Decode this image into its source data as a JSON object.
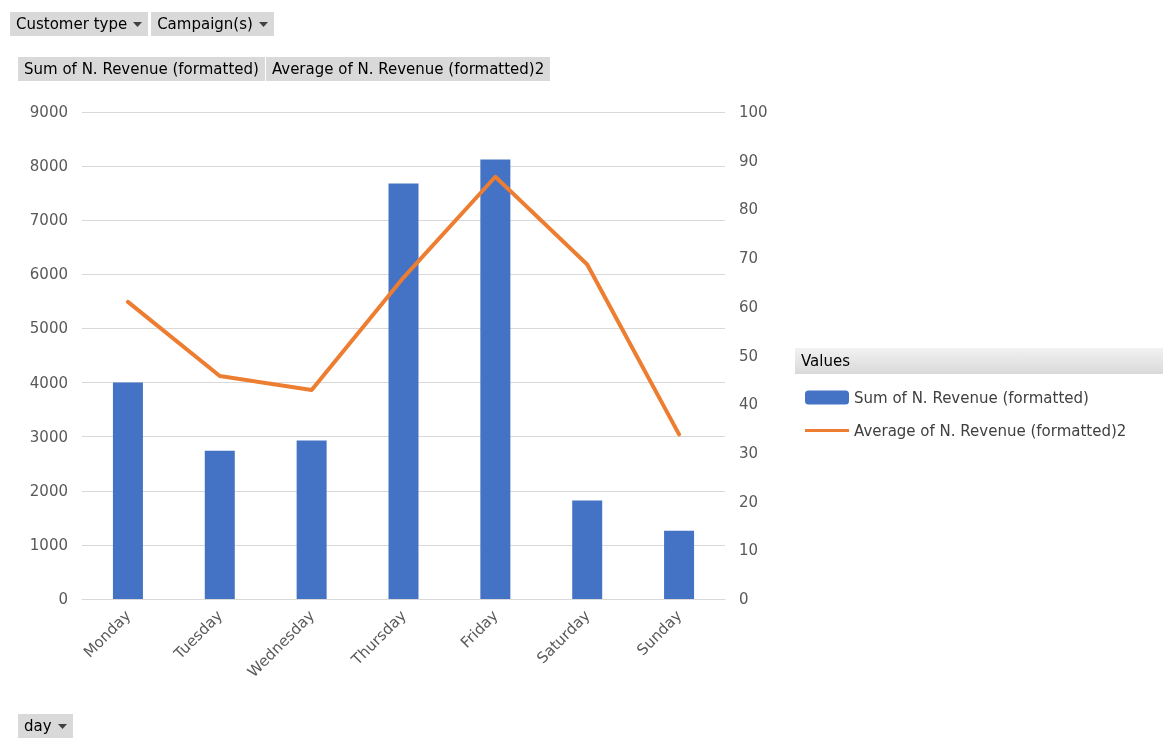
{
  "chart_data": {
    "type": "bar",
    "categories": [
      "Monday",
      "Tuesday",
      "Wednesday",
      "Thursday",
      "Friday",
      "Saturday",
      "Sunday"
    ],
    "xlabel": "day",
    "legend_title": "Values",
    "annotations": [
      "Customer type",
      "Campaign(s)",
      "Sum of N. Revenue (formatted)",
      "Average of N. Revenue (formatted)2"
    ],
    "series": [
      {
        "name": "Sum of N. Revenue (formatted)",
        "color": "#4472c4",
        "values": [
          4000,
          2740,
          2930,
          7680,
          8120,
          1820,
          1260
        ]
      },
      {
        "name": "Average of N. Revenue (formatted)2",
        "type": "line",
        "axis": "y2",
        "color": "#ed7d31",
        "values": [
          61,
          45.8,
          42.9,
          66,
          86.7,
          68.7,
          33.8
        ]
      }
    ],
    "ylim": [
      0,
      9000
    ],
    "yticks": [
      0,
      1000,
      2000,
      3000,
      4000,
      5000,
      6000,
      7000,
      8000,
      9000
    ],
    "y2lim": [
      0,
      100
    ],
    "y2ticks": [
      0,
      10,
      20,
      30,
      40,
      50,
      60,
      70,
      80,
      90,
      100
    ],
    "grid": "y",
    "legend": "right",
    "marker": "none"
  }
}
